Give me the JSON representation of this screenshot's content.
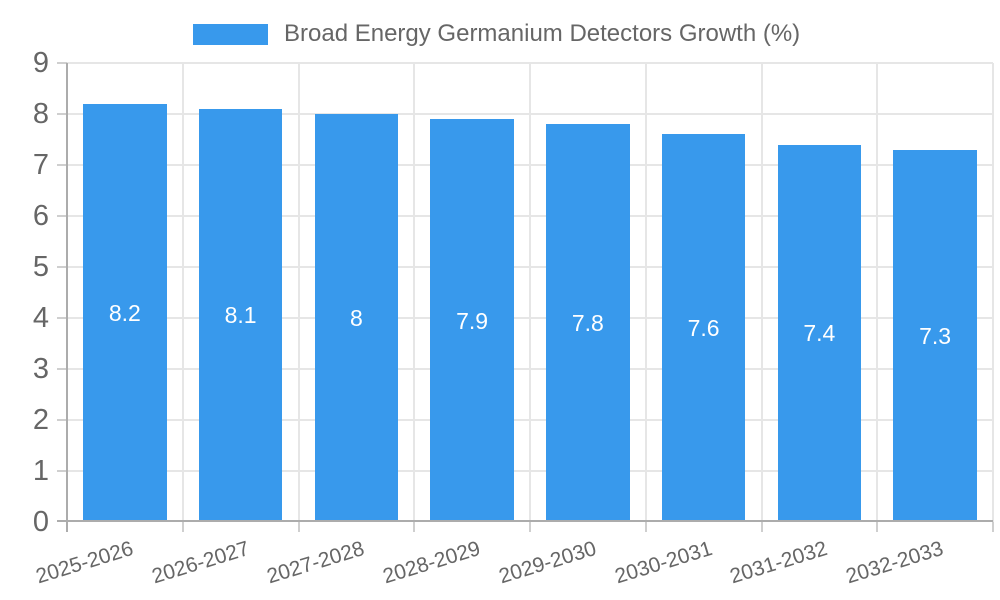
{
  "chart_data": {
    "type": "bar",
    "legend_label": "Broad Energy Germanium Detectors Growth (%)",
    "legend_position": "top",
    "categories": [
      "2025-2026",
      "2026-2027",
      "2027-2028",
      "2028-2029",
      "2029-2030",
      "2030-2031",
      "2031-2032",
      "2032-2033"
    ],
    "values": [
      8.2,
      8.1,
      8,
      7.9,
      7.8,
      7.6,
      7.4,
      7.3
    ],
    "value_labels": [
      "8.2",
      "8.1",
      "8",
      "7.9",
      "7.8",
      "7.6",
      "7.4",
      "7.3"
    ],
    "xlabel": "",
    "ylabel": "",
    "ylim": [
      0,
      9
    ],
    "yticks": [
      0,
      1,
      2,
      3,
      4,
      5,
      6,
      7,
      8,
      9
    ],
    "grid": true,
    "colors": {
      "bar": "#3899EC",
      "bar_value_text": "#FFFFFF",
      "axis_line": "#ACACAC",
      "tick_mark": "#CFCFCF",
      "gridline": "#E6E6E6",
      "tick_text": "#666666",
      "legend_text": "#666666",
      "background": "#FFFFFF"
    }
  }
}
